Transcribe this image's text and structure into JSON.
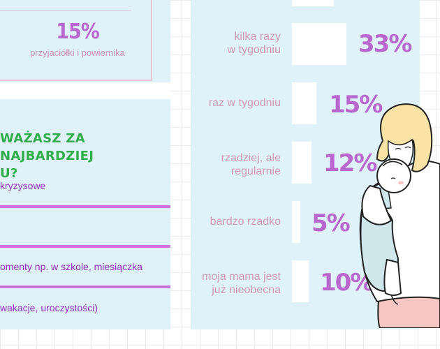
{
  "left": {
    "top_stat": {
      "percent": "15%",
      "label": "przyjaciółki i powiernika"
    },
    "question": {
      "line1": "WAŻASZ ZA NAJBARDZIEJ",
      "line2": "U?"
    },
    "options": [
      "kryzysowe",
      "omenty np. w szkole, miesiączka",
      "wakacje, uroczystości)"
    ]
  },
  "frequency": {
    "rows": [
      {
        "label_line1": "kilka razy",
        "label_line2": "w tygodniu",
        "percent": "33%",
        "value": 33
      },
      {
        "label_line1": "raz w tygodniu",
        "label_line2": "",
        "percent": "15%",
        "value": 15
      },
      {
        "label_line1": "rzadziej, ale",
        "label_line2": "regularnie",
        "percent": "12%",
        "value": 12
      },
      {
        "label_line1": "bardzo rzadko",
        "label_line2": "",
        "percent": "5%",
        "value": 5
      },
      {
        "label_line1": "moja mama jest",
        "label_line2": "już nieobecna",
        "percent": "10%",
        "value": 10
      }
    ]
  },
  "colors": {
    "panel": "#dff2fa",
    "accent_purple": "#b867cf",
    "question_green": "#2fae4a",
    "separator": "#cf73df",
    "label_pink": "#d09ab2"
  }
}
